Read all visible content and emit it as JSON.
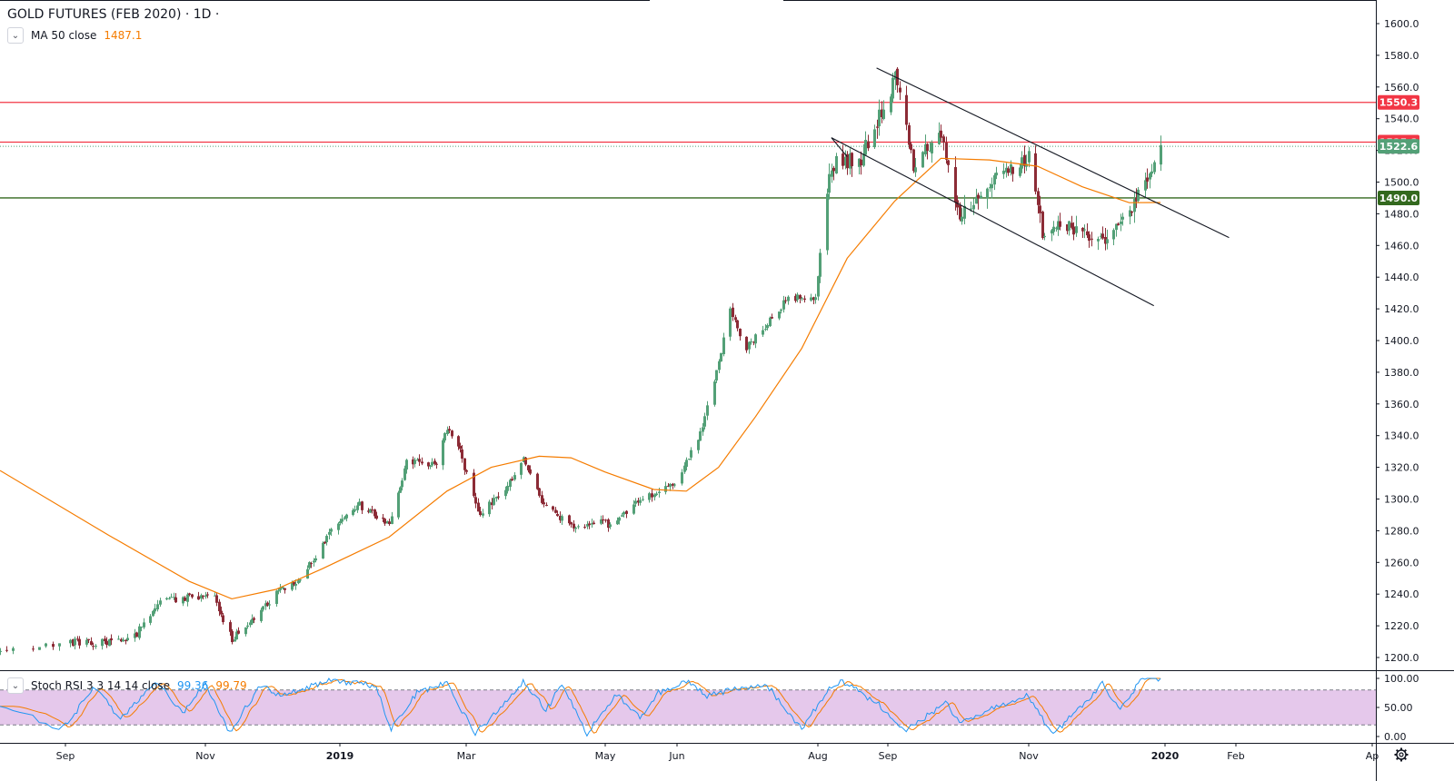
{
  "header": {
    "title": "GOLD FUTURES (FEB 2020) · 1D ·",
    "ma_label": "MA 50 close",
    "ma_value": "1487.1"
  },
  "indicator": {
    "label": "Stoch RSI 3 3 14 14 close",
    "k_value": "99.36",
    "d_value": "99.79"
  },
  "colors": {
    "up": "#53a077",
    "down": "#8c2b36",
    "ma": "#f57c00",
    "resistance": "#f23645",
    "support": "#33691e",
    "k_line": "#2196f3",
    "d_line": "#f57c00",
    "rsi_band": "#e1bee7"
  },
  "chart_data": [
    {
      "type": "candlestick",
      "title": "GOLD FUTURES (FEB 2020) · 1D ·",
      "x_ticks": [
        "Sep",
        "Nov",
        "2019",
        "Mar",
        "May",
        "Jun",
        "Aug",
        "Sep",
        "Nov",
        "2020",
        "Feb",
        "Ap"
      ],
      "y_ticks": [
        1200,
        1220,
        1240,
        1260,
        1280,
        1300,
        1320,
        1340,
        1360,
        1380,
        1400,
        1420,
        1440,
        1460,
        1480,
        1500,
        1520,
        1540,
        1560,
        1580,
        1600
      ],
      "ylim": [
        1190,
        1610
      ],
      "date_range": [
        "2018-08-22",
        "2019-12-30"
      ],
      "close_path": [
        [
          "2018-08-22",
          1203
        ],
        [
          "2018-09-01",
          1210
        ],
        [
          "2018-09-15",
          1209
        ],
        [
          "2018-10-01",
          1213
        ],
        [
          "2018-10-11",
          1235
        ],
        [
          "2018-10-25",
          1238
        ],
        [
          "2018-11-05",
          1237
        ],
        [
          "2018-11-13",
          1212
        ],
        [
          "2018-12-03",
          1240
        ],
        [
          "2018-12-14",
          1250
        ],
        [
          "2018-12-31",
          1285
        ],
        [
          "2019-01-10",
          1296
        ],
        [
          "2019-01-24",
          1285
        ],
        [
          "2019-02-01",
          1323
        ],
        [
          "2019-02-15",
          1322
        ],
        [
          "2019-02-20",
          1345
        ],
        [
          "2019-02-26",
          1330
        ],
        [
          "2019-03-06",
          1290
        ],
        [
          "2019-03-20",
          1310
        ],
        [
          "2019-03-26",
          1327
        ],
        [
          "2019-04-02",
          1300
        ],
        [
          "2019-04-18",
          1280
        ],
        [
          "2019-04-30",
          1287
        ],
        [
          "2019-05-02",
          1283
        ],
        [
          "2019-05-16",
          1300
        ],
        [
          "2019-05-31",
          1310
        ],
        [
          "2019-06-12",
          1345
        ],
        [
          "2019-06-24",
          1418
        ],
        [
          "2019-07-01",
          1395
        ],
        [
          "2019-07-19",
          1427
        ],
        [
          "2019-07-31",
          1426
        ],
        [
          "2019-08-07",
          1512
        ],
        [
          "2019-08-20",
          1515
        ],
        [
          "2019-09-04",
          1565
        ],
        [
          "2019-09-12",
          1510
        ],
        [
          "2019-09-24",
          1533
        ],
        [
          "2019-10-01",
          1480
        ],
        [
          "2019-10-15",
          1498
        ],
        [
          "2019-10-24",
          1508
        ],
        [
          "2019-11-01",
          1517
        ],
        [
          "2019-11-07",
          1470
        ],
        [
          "2019-11-14",
          1472
        ],
        [
          "2019-11-28",
          1467
        ],
        [
          "2019-12-06",
          1466
        ],
        [
          "2019-12-18",
          1484
        ],
        [
          "2019-12-23",
          1499
        ],
        [
          "2019-12-30",
          1522.6
        ]
      ],
      "series": [
        {
          "name": "MA 50 close",
          "values": [
            [
              "2018-08-22",
              1318
            ],
            [
              "2018-09-20",
              1277
            ],
            [
              "2018-10-25",
              1248
            ],
            [
              "2018-11-13",
              1237
            ],
            [
              "2018-12-03",
              1243
            ],
            [
              "2018-12-24",
              1256
            ],
            [
              "2019-01-24",
              1276
            ],
            [
              "2019-02-20",
              1305
            ],
            [
              "2019-03-12",
              1320
            ],
            [
              "2019-04-02",
              1327
            ],
            [
              "2019-04-16",
              1326
            ],
            [
              "2019-05-01",
              1317
            ],
            [
              "2019-05-22",
              1306
            ],
            [
              "2019-06-05",
              1305
            ],
            [
              "2019-06-19",
              1320
            ],
            [
              "2019-07-05",
              1352
            ],
            [
              "2019-07-25",
              1395
            ],
            [
              "2019-08-14",
              1452
            ],
            [
              "2019-09-04",
              1488
            ],
            [
              "2019-09-24",
              1515
            ],
            [
              "2019-10-15",
              1514
            ],
            [
              "2019-11-05",
              1510
            ],
            [
              "2019-11-25",
              1497
            ],
            [
              "2019-12-16",
              1487
            ],
            [
              "2019-12-30",
              1487.1
            ]
          ]
        }
      ],
      "horizontal_levels": [
        {
          "label": "1550.3",
          "value": 1550.3,
          "color": "#f23645"
        },
        {
          "label": "1525.2",
          "value": 1525.2,
          "color": "#f23645"
        },
        {
          "label": "1522.6",
          "value": 1522.6,
          "color": "#53a077",
          "style": "dotted"
        },
        {
          "label": "1490.0",
          "value": 1490.0,
          "color": "#33691e"
        }
      ],
      "trend_lines": [
        {
          "from": [
            "2019-08-27",
            1572
          ],
          "to": [
            "2020-01-29",
            1465
          ]
        },
        {
          "from": [
            "2019-08-07",
            1528
          ],
          "to": [
            "2019-12-27",
            1422
          ]
        },
        {
          "from": [
            "2019-08-07",
            1528
          ],
          "to": [
            "2019-08-14",
            1516
          ]
        }
      ]
    },
    {
      "type": "line",
      "title": "Stoch RSI 3 3 14 14 close",
      "y_ticks": [
        "100.00",
        "50.00",
        "0.00"
      ],
      "ylim": [
        -5,
        105
      ],
      "band": [
        20,
        80
      ],
      "series": [
        {
          "name": "K",
          "last": 99.36
        },
        {
          "name": "D",
          "last": 99.79
        }
      ],
      "turning_points": [
        [
          "2018-08-22",
          55
        ],
        [
          "2018-08-31",
          15
        ],
        [
          "2018-09-14",
          85
        ],
        [
          "2018-09-25",
          30
        ],
        [
          "2018-10-11",
          95
        ],
        [
          "2018-10-22",
          40
        ],
        [
          "2018-11-01",
          92
        ],
        [
          "2018-11-12",
          8
        ],
        [
          "2018-11-26",
          88
        ],
        [
          "2018-12-05",
          70
        ],
        [
          "2018-12-26",
          95
        ],
        [
          "2019-01-10",
          92
        ],
        [
          "2019-01-18",
          85
        ],
        [
          "2019-01-25",
          12
        ],
        [
          "2019-02-06",
          75
        ],
        [
          "2019-02-20",
          92
        ],
        [
          "2019-03-05",
          5
        ],
        [
          "2019-03-14",
          40
        ],
        [
          "2019-03-26",
          95
        ],
        [
          "2019-04-05",
          45
        ],
        [
          "2019-04-12",
          90
        ],
        [
          "2019-04-23",
          5
        ],
        [
          "2019-05-06",
          72
        ],
        [
          "2019-05-16",
          32
        ],
        [
          "2019-05-24",
          75
        ],
        [
          "2019-06-05",
          95
        ],
        [
          "2019-06-14",
          70
        ],
        [
          "2019-06-27",
          82
        ],
        [
          "2019-07-10",
          88
        ],
        [
          "2019-07-25",
          12
        ],
        [
          "2019-08-06",
          85
        ],
        [
          "2019-08-12",
          95
        ],
        [
          "2019-08-28",
          55
        ],
        [
          "2019-09-09",
          10
        ],
        [
          "2019-09-26",
          58
        ],
        [
          "2019-10-03",
          22
        ],
        [
          "2019-10-17",
          50
        ],
        [
          "2019-10-31",
          70
        ],
        [
          "2019-11-12",
          4
        ],
        [
          "2019-11-25",
          55
        ],
        [
          "2019-12-04",
          90
        ],
        [
          "2019-12-12",
          48
        ],
        [
          "2019-12-22",
          100
        ],
        [
          "2019-12-30",
          99.36
        ]
      ]
    }
  ]
}
